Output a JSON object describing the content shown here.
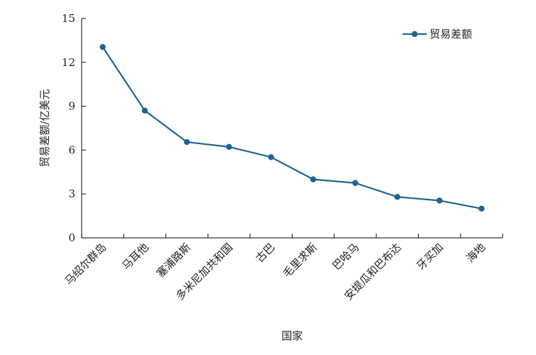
{
  "chart_data": {
    "type": "line",
    "title": "",
    "xlabel": "国家",
    "ylabel": "贸易差额/亿美元",
    "ylim": [
      0,
      15
    ],
    "yticks": [
      0,
      3,
      6,
      9,
      12,
      15
    ],
    "categories": [
      "马绍尔群岛",
      "马耳他",
      "塞浦路斯",
      "多米尼加共和国",
      "古巴",
      "毛里求斯",
      "巴哈马",
      "安提瓜和巴布达",
      "牙买加",
      "海地"
    ],
    "series": [
      {
        "name": "贸易差额",
        "values": [
          13.05,
          8.7,
          6.55,
          6.22,
          5.52,
          4.0,
          3.75,
          2.8,
          2.55,
          2.0
        ]
      }
    ],
    "grid": false,
    "legend_position": "top-right",
    "colors": {
      "series": "#1f6591",
      "axis": "#333333",
      "text": "#222222"
    }
  }
}
